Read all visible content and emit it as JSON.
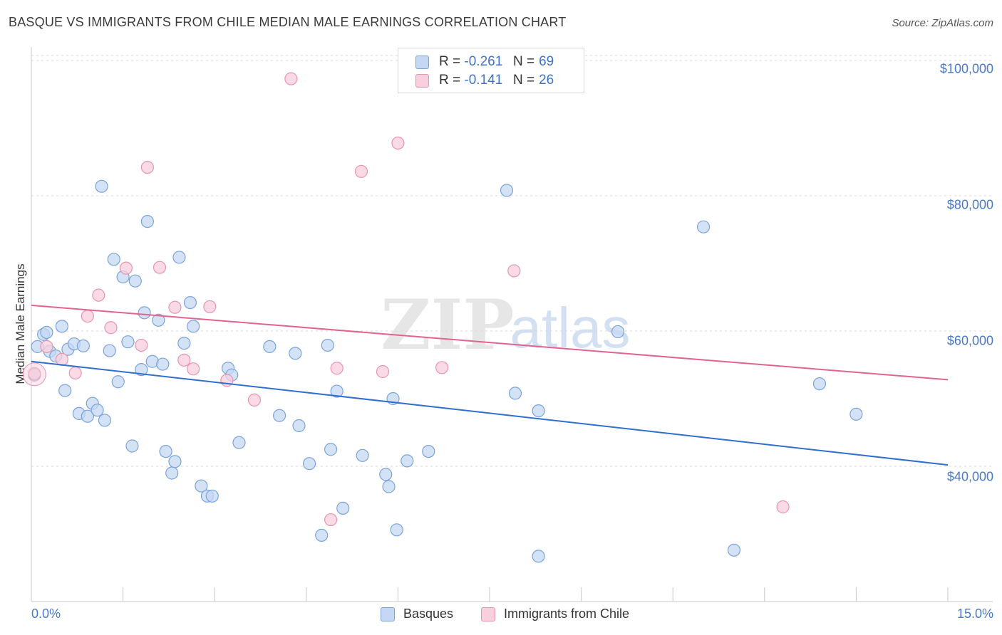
{
  "header": {
    "title": "BASQUE VS IMMIGRANTS FROM CHILE MEDIAN MALE EARNINGS CORRELATION CHART",
    "source": "Source: ZipAtlas.com"
  },
  "watermark": {
    "zip": "ZIP",
    "atlas": "atlas"
  },
  "colors": {
    "basques_fill": "#c5d8f3",
    "basques_stroke": "#7aa3dc",
    "basques_line": "#2f6fd0",
    "chile_fill": "#f8cfdc",
    "chile_stroke": "#e895ae",
    "chile_line": "#e0648f",
    "grid": "#d9d9d9",
    "axis_text": "#4a79c9"
  },
  "legend_top": {
    "rows": [
      {
        "r_label": "R =",
        "r_value": "-0.261",
        "n_label": "N =",
        "n_value": "69"
      },
      {
        "r_label": "R =",
        "r_value": "-0.141",
        "n_label": "N =",
        "n_value": "26"
      }
    ]
  },
  "legend_bottom": {
    "items": [
      {
        "label": "Basques"
      },
      {
        "label": "Immigrants from Chile"
      }
    ]
  },
  "chart_data": {
    "type": "scatter",
    "title": "BASQUE VS IMMIGRANTS FROM CHILE MEDIAN MALE EARNINGS CORRELATION CHART",
    "xlabel": "",
    "ylabel": "Median Male Earnings",
    "xlim": [
      0,
      15
    ],
    "ylim": [
      20000,
      102000
    ],
    "x_tick_labels": [
      "0.0%",
      "15.0%"
    ],
    "y_ticks": [
      40000,
      60000,
      80000,
      100000
    ],
    "y_tick_labels": [
      "$40,000",
      "$60,000",
      "$80,000",
      "$100,000"
    ],
    "grid": "horizontal dashed",
    "legend_position": "bottom-center",
    "series": [
      {
        "name": "Basques",
        "r": -0.261,
        "n": 69,
        "trend": {
          "x": [
            0,
            15
          ],
          "y": [
            55500,
            40200
          ]
        },
        "points": [
          [
            0.05,
            53500
          ],
          [
            0.1,
            57700
          ],
          [
            0.2,
            59500
          ],
          [
            0.25,
            59800
          ],
          [
            0.3,
            57000
          ],
          [
            0.4,
            56300
          ],
          [
            0.5,
            60700
          ],
          [
            0.55,
            51200
          ],
          [
            0.6,
            57300
          ],
          [
            0.7,
            58100
          ],
          [
            0.78,
            47800
          ],
          [
            0.85,
            57800
          ],
          [
            0.92,
            47400
          ],
          [
            1.0,
            49300
          ],
          [
            1.08,
            48300
          ],
          [
            1.15,
            81400
          ],
          [
            1.2,
            46800
          ],
          [
            1.28,
            57100
          ],
          [
            1.35,
            70600
          ],
          [
            1.42,
            52500
          ],
          [
            1.5,
            68000
          ],
          [
            1.58,
            58400
          ],
          [
            1.65,
            43000
          ],
          [
            1.7,
            67400
          ],
          [
            1.8,
            54300
          ],
          [
            1.85,
            62700
          ],
          [
            1.9,
            76200
          ],
          [
            1.98,
            55500
          ],
          [
            2.08,
            61600
          ],
          [
            2.15,
            55100
          ],
          [
            2.2,
            42200
          ],
          [
            2.3,
            39000
          ],
          [
            2.35,
            40700
          ],
          [
            2.42,
            70900
          ],
          [
            2.5,
            58200
          ],
          [
            2.6,
            64200
          ],
          [
            2.65,
            60700
          ],
          [
            2.78,
            37100
          ],
          [
            2.88,
            35600
          ],
          [
            2.96,
            35600
          ],
          [
            3.22,
            54500
          ],
          [
            3.28,
            53500
          ],
          [
            3.4,
            43500
          ],
          [
            3.9,
            57700
          ],
          [
            4.06,
            47500
          ],
          [
            4.32,
            56700
          ],
          [
            4.38,
            46000
          ],
          [
            4.55,
            40400
          ],
          [
            4.75,
            29800
          ],
          [
            4.85,
            57900
          ],
          [
            4.9,
            42500
          ],
          [
            5.0,
            51100
          ],
          [
            5.1,
            33800
          ],
          [
            5.42,
            41600
          ],
          [
            5.8,
            38800
          ],
          [
            5.85,
            37000
          ],
          [
            5.92,
            50000
          ],
          [
            5.98,
            30600
          ],
          [
            6.15,
            40800
          ],
          [
            6.5,
            42200
          ],
          [
            7.78,
            80800
          ],
          [
            7.92,
            50800
          ],
          [
            8.3,
            48200
          ],
          [
            8.3,
            26700
          ],
          [
            9.6,
            59900
          ],
          [
            11.0,
            75400
          ],
          [
            11.5,
            27600
          ],
          [
            12.9,
            52200
          ],
          [
            13.5,
            47700
          ]
        ]
      },
      {
        "name": "Immigrants from Chile",
        "r": -0.141,
        "n": 26,
        "trend": {
          "x": [
            0,
            15
          ],
          "y": [
            63800,
            52800
          ]
        },
        "points": [
          [
            0.05,
            53700
          ],
          [
            0.25,
            57700
          ],
          [
            0.5,
            55800
          ],
          [
            0.72,
            53800
          ],
          [
            0.92,
            62200
          ],
          [
            1.1,
            65300
          ],
          [
            1.3,
            60500
          ],
          [
            1.55,
            69300
          ],
          [
            1.8,
            57900
          ],
          [
            1.9,
            84200
          ],
          [
            2.1,
            69400
          ],
          [
            2.35,
            63500
          ],
          [
            2.5,
            55700
          ],
          [
            2.65,
            54400
          ],
          [
            2.92,
            63600
          ],
          [
            3.2,
            52700
          ],
          [
            3.65,
            49800
          ],
          [
            4.25,
            97300
          ],
          [
            4.9,
            32100
          ],
          [
            5.0,
            54500
          ],
          [
            5.4,
            83600
          ],
          [
            5.75,
            54000
          ],
          [
            6.0,
            87800
          ],
          [
            6.72,
            54600
          ],
          [
            7.9,
            68900
          ],
          [
            12.3,
            34000
          ]
        ]
      }
    ]
  }
}
